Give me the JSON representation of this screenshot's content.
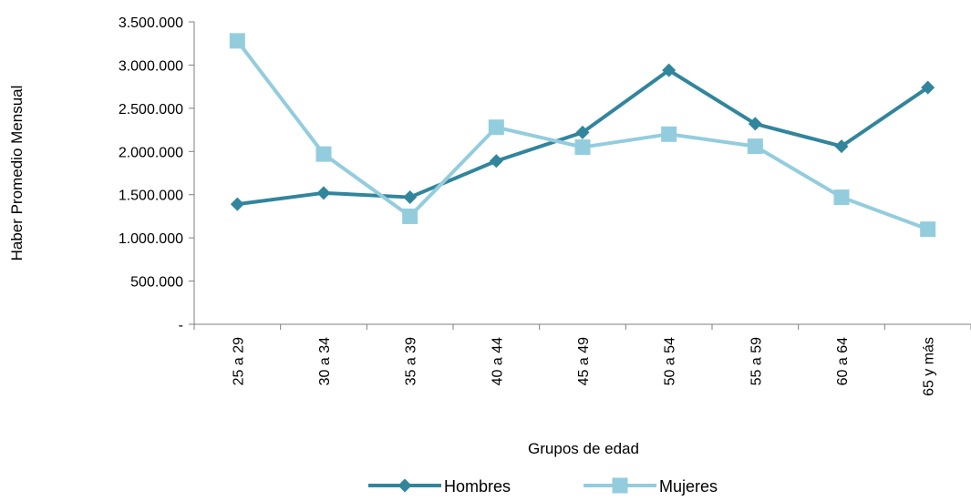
{
  "chart_data": {
    "type": "line",
    "title": "",
    "xlabel": "Grupos de edad",
    "ylabel": "Haber Promedio Mensual",
    "categories": [
      "25 a 29",
      "30 a 34",
      "35 a 39",
      "40 a 44",
      "45 a 49",
      "50 a 54",
      "55 a 59",
      "60 a 64",
      "65 y más"
    ],
    "ylim": [
      0,
      3500000
    ],
    "yticks": [
      0,
      500000,
      1000000,
      1500000,
      2000000,
      2500000,
      3000000,
      3500000
    ],
    "ytick_labels": [
      "-",
      "500.000",
      "1.000.000",
      "1.500.000",
      "2.000.000",
      "2.500.000",
      "3.000.000",
      "3.500.000"
    ],
    "grid": false,
    "legend_position": "bottom",
    "series": [
      {
        "name": "Hombres",
        "marker": "diamond",
        "color": "#31859C",
        "values": [
          1390000,
          1520000,
          1470000,
          1890000,
          2220000,
          2940000,
          2320000,
          2060000,
          2740000
        ]
      },
      {
        "name": "Mujeres",
        "marker": "square",
        "color": "#93CDDD",
        "values": [
          3280000,
          1970000,
          1250000,
          2280000,
          2050000,
          2200000,
          2060000,
          1470000,
          1100000
        ]
      }
    ]
  }
}
